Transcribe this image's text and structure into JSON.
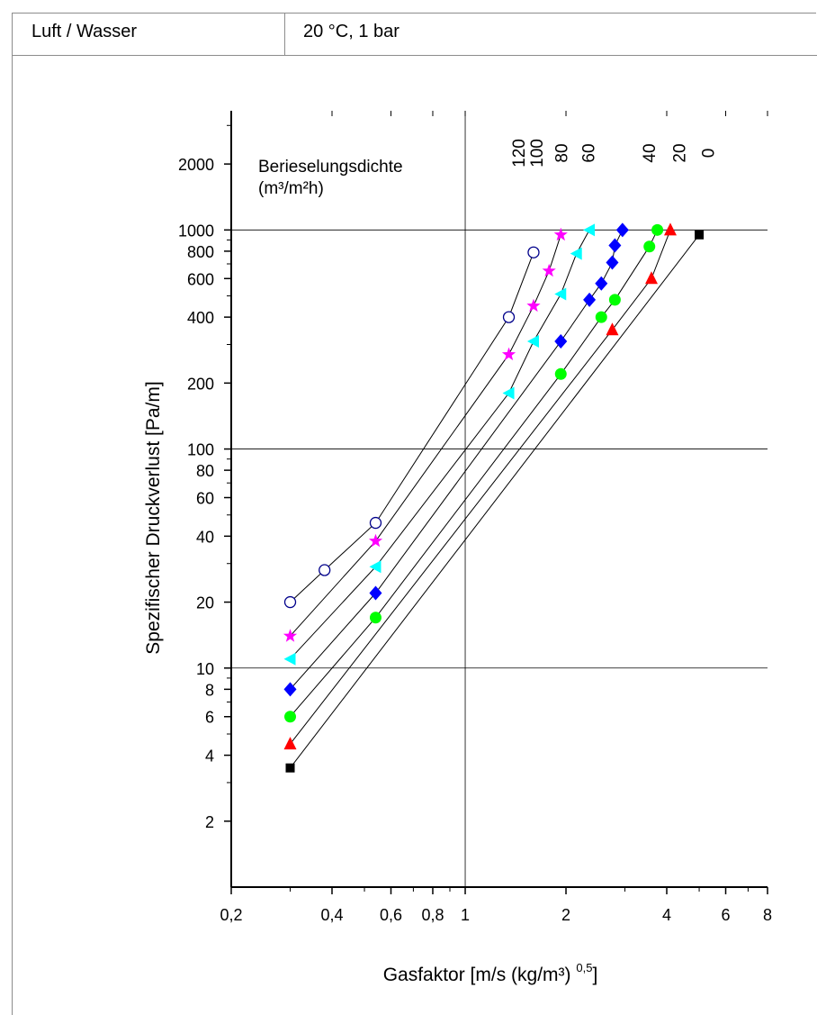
{
  "header": {
    "medium": "Luft / Wasser",
    "conditions": "20 °C, 1 bar"
  },
  "chart_data": {
    "type": "scatter",
    "xlabel": "Gasfaktor [m/s (kg/m³) ",
    "xlabel_sup": "0,5",
    "xlabel_end": "]",
    "ylabel": "Spezifischer Druckverlust [Pa/m]",
    "x_scale": "log",
    "y_scale": "log",
    "xlim": [
      0.2,
      8
    ],
    "ylim": [
      1,
      3500
    ],
    "x_ticks": [
      {
        "v": 0.2,
        "label": "0,2"
      },
      {
        "v": 0.4,
        "label": "0,4"
      },
      {
        "v": 0.6,
        "label": "0,6"
      },
      {
        "v": 0.8,
        "label": "0,8"
      },
      {
        "v": 1,
        "label": "1"
      },
      {
        "v": 2,
        "label": "2"
      },
      {
        "v": 4,
        "label": "4"
      },
      {
        "v": 6,
        "label": "6"
      },
      {
        "v": 8,
        "label": "8"
      }
    ],
    "y_ticks": [
      {
        "v": 2,
        "label": "2"
      },
      {
        "v": 4,
        "label": "4"
      },
      {
        "v": 6,
        "label": "6"
      },
      {
        "v": 8,
        "label": "8"
      },
      {
        "v": 10,
        "label": "10"
      },
      {
        "v": 20,
        "label": "20"
      },
      {
        "v": 40,
        "label": "40"
      },
      {
        "v": 60,
        "label": "60"
      },
      {
        "v": 80,
        "label": "80"
      },
      {
        "v": 100,
        "label": "100"
      },
      {
        "v": 200,
        "label": "200"
      },
      {
        "v": 400,
        "label": "400"
      },
      {
        "v": 600,
        "label": "600"
      },
      {
        "v": 800,
        "label": "800"
      },
      {
        "v": 1000,
        "label": "1000"
      },
      {
        "v": 2000,
        "label": "2000"
      }
    ],
    "x_gridlines": [
      1
    ],
    "y_gridlines": [
      10,
      100,
      1000
    ],
    "legend_title": "Berieselungsdichte",
    "legend_unit": "(m³/m²h)",
    "series": [
      {
        "name": "120",
        "marker": "circle-open",
        "color": "#00008b",
        "points": [
          [
            0.3,
            20
          ],
          [
            0.38,
            28
          ],
          [
            0.54,
            46
          ],
          [
            1.35,
            400
          ],
          [
            1.6,
            790
          ]
        ],
        "label_x": 1.44
      },
      {
        "name": "100",
        "marker": "star",
        "color": "#ff00ff",
        "points": [
          [
            0.3,
            14
          ],
          [
            0.54,
            38
          ],
          [
            1.35,
            270
          ],
          [
            1.6,
            450
          ],
          [
            1.78,
            650
          ],
          [
            1.93,
            950
          ]
        ],
        "label_x": 1.63
      },
      {
        "name": "80",
        "marker": "triangle-left",
        "color": "#00ffff",
        "points": [
          [
            0.3,
            11
          ],
          [
            0.54,
            29
          ],
          [
            1.35,
            180
          ],
          [
            1.6,
            310
          ],
          [
            1.93,
            510
          ],
          [
            2.15,
            780
          ],
          [
            2.35,
            1000
          ]
        ],
        "label_x": 1.93
      },
      {
        "name": "60",
        "marker": "diamond",
        "color": "#0000ff",
        "points": [
          [
            0.3,
            8
          ],
          [
            0.54,
            22
          ],
          [
            1.93,
            310
          ],
          [
            2.35,
            480
          ],
          [
            2.55,
            570
          ],
          [
            2.75,
            710
          ],
          [
            2.8,
            850
          ],
          [
            2.95,
            1000
          ]
        ],
        "label_x": 2.33
      },
      {
        "name": "40",
        "marker": "circle",
        "color": "#00ff00",
        "points": [
          [
            0.3,
            6
          ],
          [
            0.54,
            17
          ],
          [
            1.93,
            220
          ],
          [
            2.55,
            400
          ],
          [
            2.8,
            480
          ],
          [
            3.55,
            840
          ],
          [
            3.75,
            1000
          ]
        ],
        "label_x": 3.53
      },
      {
        "name": "20",
        "marker": "triangle-up",
        "color": "#ff0000",
        "points": [
          [
            0.3,
            4.5
          ],
          [
            2.75,
            350
          ],
          [
            3.6,
            600
          ],
          [
            4.1,
            1000
          ]
        ],
        "label_x": 4.35
      },
      {
        "name": "0",
        "marker": "square",
        "color": "#000000",
        "points": [
          [
            0.3,
            3.5
          ],
          [
            5.0,
            950
          ]
        ],
        "label_x": 5.3
      }
    ]
  }
}
